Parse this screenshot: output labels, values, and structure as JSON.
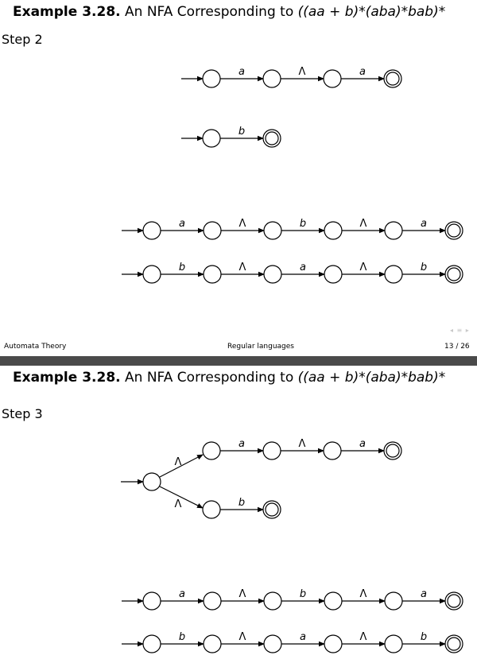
{
  "slides": [
    {
      "title_bold": "Example 3.28.",
      "title_text": "An NFA Corresponding to",
      "title_regex": "((aa + b)*(aba)*bab)*",
      "step": "Step 2",
      "footer_left": "Automata Theory",
      "footer_center": "Regular languages",
      "footer_right": "13 / 26",
      "nav": "◂ ≡ ▸",
      "chains": [
        [
          "a",
          "Λ",
          "a"
        ],
        [
          "b"
        ],
        [
          "a",
          "Λ",
          "b",
          "Λ",
          "a"
        ],
        [
          "b",
          "Λ",
          "a",
          "Λ",
          "b"
        ]
      ]
    },
    {
      "title_bold": "Example 3.28.",
      "title_text": "An NFA Corresponding to",
      "title_regex": "((aa + b)*(aba)*bab)*",
      "step": "Step 3",
      "branch_labels": [
        "Λ",
        "Λ"
      ],
      "chains": [
        [
          "a",
          "Λ",
          "a"
        ],
        [
          "b"
        ],
        [
          "a",
          "Λ",
          "b",
          "Λ",
          "a"
        ],
        [
          "b",
          "Λ",
          "a",
          "Λ",
          "b"
        ]
      ]
    }
  ]
}
